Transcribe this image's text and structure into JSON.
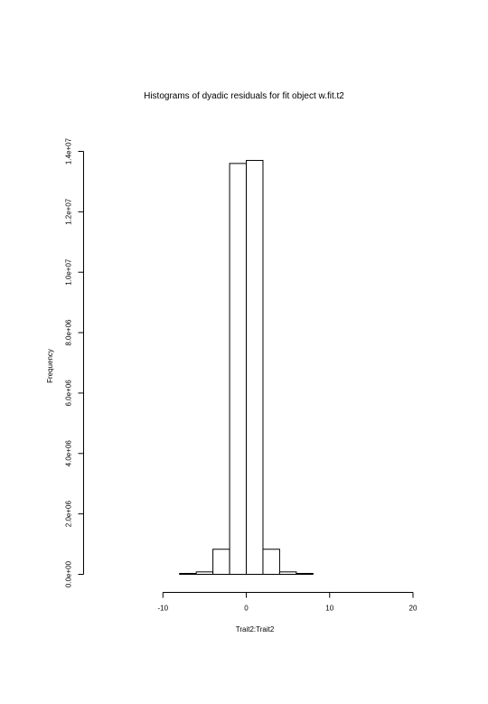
{
  "chart_data": {
    "type": "bar",
    "title": "Histograms of dyadic residuals for fit object  w.fit.t2",
    "xlabel": "Trait2:Trait2",
    "ylabel": "Frequency",
    "xlim": [
      -18,
      20
    ],
    "ylim": [
      0,
      14000000
    ],
    "x_ticks": [
      -10,
      0,
      10,
      20
    ],
    "x_tick_labels": [
      "-10",
      "0",
      "10",
      "20"
    ],
    "y_ticks": [
      0,
      2000000,
      4000000,
      6000000,
      8000000,
      10000000,
      12000000,
      14000000
    ],
    "y_tick_labels": [
      "0.0e+00",
      "2.0e+06",
      "4.0e+06",
      "6.0e+06",
      "8.0e+06",
      "1.0e+07",
      "1.2e+07",
      "1.4e+07"
    ],
    "bins": [
      {
        "x0": -18,
        "x1": -16,
        "count": 0
      },
      {
        "x0": -16,
        "x1": -14,
        "count": 0
      },
      {
        "x0": -14,
        "x1": -12,
        "count": 0
      },
      {
        "x0": -12,
        "x1": -10,
        "count": 0
      },
      {
        "x0": -10,
        "x1": -8,
        "count": 0
      },
      {
        "x0": -8,
        "x1": -6,
        "count": 30000
      },
      {
        "x0": -6,
        "x1": -4,
        "count": 80000
      },
      {
        "x0": -4,
        "x1": -2,
        "count": 830000
      },
      {
        "x0": -2,
        "x1": 0,
        "count": 13600000
      },
      {
        "x0": 0,
        "x1": 2,
        "count": 13700000
      },
      {
        "x0": 2,
        "x1": 4,
        "count": 830000
      },
      {
        "x0": 4,
        "x1": 6,
        "count": 80000
      },
      {
        "x0": 6,
        "x1": 8,
        "count": 30000
      },
      {
        "x0": 8,
        "x1": 10,
        "count": 0
      },
      {
        "x0": 10,
        "x1": 12,
        "count": 0
      },
      {
        "x0": 12,
        "x1": 14,
        "count": 0
      },
      {
        "x0": 14,
        "x1": 16,
        "count": 0
      },
      {
        "x0": 16,
        "x1": 18,
        "count": 0
      },
      {
        "x0": 18,
        "x1": 20,
        "count": 0
      }
    ],
    "grid": false,
    "legend": "none"
  }
}
